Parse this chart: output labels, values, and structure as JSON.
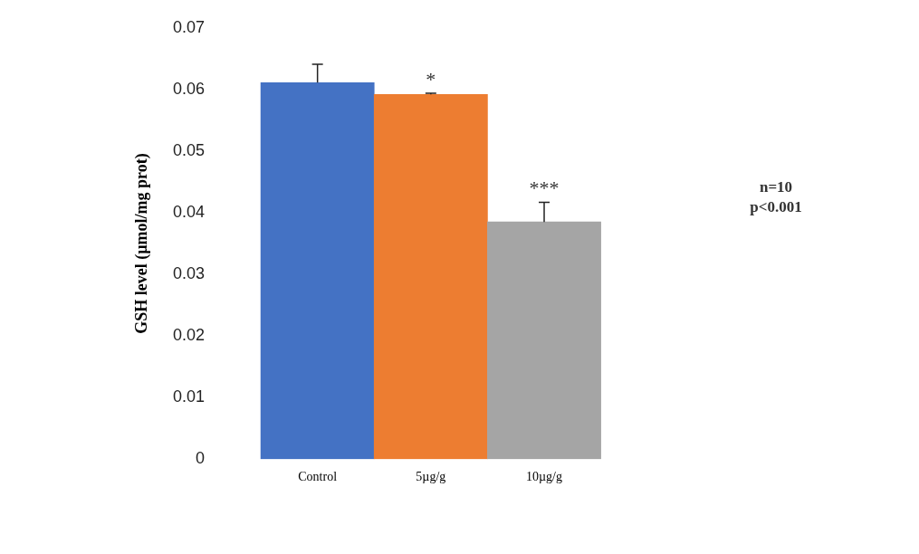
{
  "chart_data": {
    "type": "bar",
    "ylabel": "GSH level (µmol/mg prot)",
    "categories": [
      "Control",
      "5µg/g",
      "10µg/g"
    ],
    "values": [
      0.0611,
      0.0592,
      0.0385
    ],
    "colors": [
      "#4472c4",
      "#ed7d31",
      "#a5a5a5"
    ],
    "errors": [
      [
        0.0611,
        0.0641
      ],
      [
        0.0592,
        0.0594
      ],
      [
        0.0385,
        0.0417
      ]
    ],
    "ylim": [
      0,
      0.07
    ],
    "yticks": [
      0,
      0.01,
      0.02,
      0.03,
      0.04,
      0.05,
      0.06,
      0.07
    ],
    "grid": false,
    "legend": false,
    "annotations": [
      {
        "text": "*",
        "x": "5µg/g",
        "y": 0.0594
      },
      {
        "text": "***",
        "x": "10µg/g",
        "y": 0.0417
      },
      "n=10\np<0.001"
    ]
  }
}
